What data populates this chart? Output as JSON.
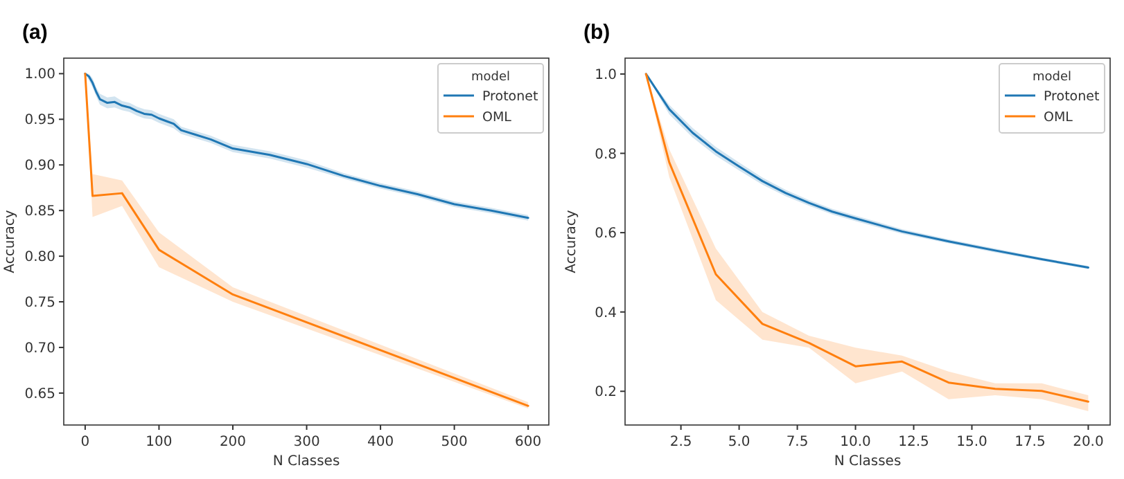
{
  "chart_data": [
    {
      "type": "line",
      "title": "(a)",
      "xlabel": "N Classes",
      "ylabel": "Accuracy",
      "legend_title": "model",
      "legend": "top right",
      "grid": false,
      "xlim": [
        -29,
        628
      ],
      "xticks": [
        0,
        100,
        200,
        300,
        400,
        500,
        600
      ],
      "ylim": [
        0.615,
        1.017
      ],
      "yticks": [
        {
          "value": 0.65,
          "label": "0.65"
        },
        {
          "value": 0.7,
          "label": "0.70"
        },
        {
          "value": 0.75,
          "label": "0.75"
        },
        {
          "value": 0.8,
          "label": "0.80"
        },
        {
          "value": 0.85,
          "label": "0.85"
        },
        {
          "value": 0.9,
          "label": "0.90"
        },
        {
          "value": 0.95,
          "label": "0.95"
        },
        {
          "value": 1.0,
          "label": "1.00"
        }
      ],
      "series": [
        {
          "name": "Protonet",
          "color": "#1f77b4",
          "x": [
            0,
            5,
            10,
            15,
            20,
            30,
            40,
            50,
            60,
            70,
            80,
            90,
            100,
            110,
            120,
            130,
            150,
            170,
            200,
            250,
            300,
            350,
            400,
            450,
            500,
            550,
            600
          ],
          "values": [
            1.0,
            0.997,
            0.99,
            0.98,
            0.972,
            0.968,
            0.969,
            0.965,
            0.963,
            0.959,
            0.956,
            0.955,
            0.951,
            0.948,
            0.945,
            0.938,
            0.933,
            0.928,
            0.918,
            0.911,
            0.901,
            0.888,
            0.877,
            0.868,
            0.857,
            0.85,
            0.842
          ],
          "lower": [
            1.0,
            0.993,
            0.985,
            0.975,
            0.966,
            0.962,
            0.963,
            0.96,
            0.958,
            0.954,
            0.951,
            0.95,
            0.946,
            0.943,
            0.94,
            0.934,
            0.929,
            0.924,
            0.914,
            0.907,
            0.897,
            0.885,
            0.874,
            0.865,
            0.854,
            0.847,
            0.839
          ],
          "upper": [
            1.0,
            1.0,
            0.995,
            0.985,
            0.978,
            0.974,
            0.975,
            0.97,
            0.968,
            0.964,
            0.961,
            0.96,
            0.956,
            0.953,
            0.95,
            0.942,
            0.937,
            0.932,
            0.922,
            0.915,
            0.905,
            0.891,
            0.88,
            0.871,
            0.86,
            0.853,
            0.845
          ]
        },
        {
          "name": "OML",
          "color": "#ff7f0e",
          "x": [
            0,
            10,
            50,
            100,
            200,
            600
          ],
          "values": [
            1.0,
            0.866,
            0.869,
            0.807,
            0.758,
            0.636
          ],
          "lower": [
            1.0,
            0.843,
            0.855,
            0.788,
            0.75,
            0.633
          ],
          "upper": [
            1.0,
            0.89,
            0.883,
            0.826,
            0.766,
            0.64
          ]
        }
      ]
    },
    {
      "type": "line",
      "title": "(b)",
      "xlabel": "N Classes",
      "ylabel": "Accuracy",
      "legend_title": "model",
      "legend": "top right",
      "grid": false,
      "xlim": [
        0.1,
        20.94
      ],
      "xticks": [
        {
          "value": 2.5,
          "label": "2.5"
        },
        {
          "value": 5,
          "label": "5.0"
        },
        {
          "value": 7.5,
          "label": "7.5"
        },
        {
          "value": 10,
          "label": "10.0"
        },
        {
          "value": 12.5,
          "label": "12.5"
        },
        {
          "value": 15,
          "label": "15.0"
        },
        {
          "value": 17.5,
          "label": "17.5"
        },
        {
          "value": 20,
          "label": "20.0"
        }
      ],
      "ylim": [
        0.115,
        1.04
      ],
      "yticks": [
        0.2,
        0.4,
        0.6,
        0.8,
        {
          "value": 1.0,
          "label": "1.0"
        }
      ],
      "series": [
        {
          "name": "Protonet",
          "color": "#1f77b4",
          "x": [
            1,
            2,
            3,
            4,
            5,
            6,
            7,
            8,
            9,
            10,
            12,
            14,
            16,
            18,
            20
          ],
          "values": [
            1.0,
            0.911,
            0.852,
            0.805,
            0.767,
            0.73,
            0.7,
            0.675,
            0.653,
            0.636,
            0.603,
            0.578,
            0.555,
            0.533,
            0.512
          ],
          "lower": [
            1.0,
            0.898,
            0.84,
            0.794,
            0.757,
            0.721,
            0.692,
            0.668,
            0.646,
            0.629,
            0.597,
            0.573,
            0.55,
            0.529,
            0.508
          ],
          "upper": [
            1.0,
            0.922,
            0.864,
            0.816,
            0.777,
            0.739,
            0.708,
            0.682,
            0.66,
            0.643,
            0.609,
            0.583,
            0.56,
            0.537,
            0.516
          ]
        },
        {
          "name": "OML",
          "color": "#ff7f0e",
          "x": [
            1,
            2,
            4,
            6,
            8,
            10,
            12,
            14,
            16,
            18,
            20
          ],
          "values": [
            1.0,
            0.777,
            0.495,
            0.37,
            0.322,
            0.263,
            0.275,
            0.222,
            0.206,
            0.201,
            0.174
          ],
          "lower": [
            1.0,
            0.74,
            0.43,
            0.33,
            0.31,
            0.22,
            0.25,
            0.18,
            0.19,
            0.18,
            0.15
          ],
          "upper": [
            1.0,
            0.81,
            0.56,
            0.4,
            0.34,
            0.31,
            0.29,
            0.25,
            0.22,
            0.22,
            0.19
          ]
        }
      ]
    }
  ]
}
